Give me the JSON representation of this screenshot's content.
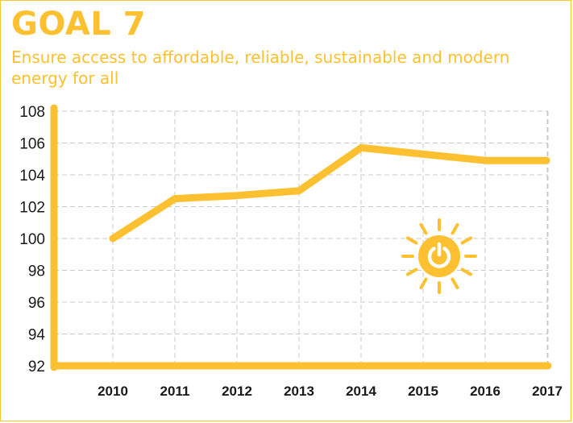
{
  "header": {
    "title": "GOAL 7",
    "subtitle_line1": "Ensure access to affordable, reliable, sustainable and modern",
    "subtitle_line2": "energy for all"
  },
  "icon": {
    "name": "sun-power-icon",
    "color": "#fcc030"
  },
  "colors": {
    "accent": "#fcc030",
    "grid": "#c8c8c8",
    "text": "#1a1a1a"
  },
  "chart_data": {
    "type": "line",
    "title": "",
    "xlabel": "",
    "ylabel": "",
    "x": [
      "2010",
      "2011",
      "2012",
      "2013",
      "2014",
      "2015",
      "2016",
      "2017"
    ],
    "series": [
      {
        "values": [
          100.0,
          102.5,
          102.7,
          103.0,
          105.7,
          105.3,
          104.9,
          104.9
        ]
      }
    ],
    "ylim": [
      92,
      108
    ],
    "yticks": [
      92,
      94,
      96,
      98,
      100,
      102,
      104,
      106,
      108
    ],
    "grid": true,
    "grid_style": "dashed",
    "legend": "none"
  }
}
